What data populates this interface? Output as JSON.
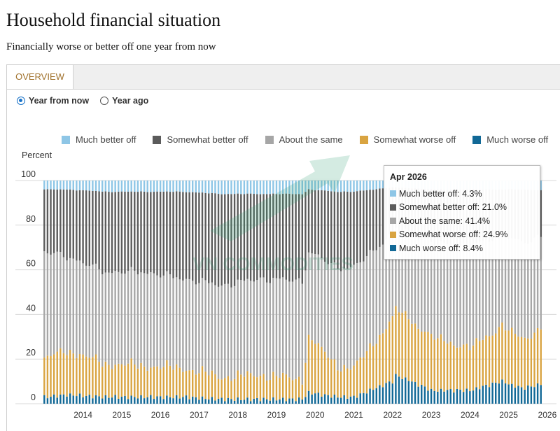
{
  "header": {
    "title": "Household financial situation",
    "subtitle": "Financially worse or better off one year from now"
  },
  "tabs": [
    {
      "label": "OVERVIEW",
      "active": true
    }
  ],
  "radio": [
    {
      "label": "Year from now",
      "checked": true
    },
    {
      "label": "Year ago",
      "checked": false
    }
  ],
  "watermark": "VN COMMODITIES",
  "tooltip": {
    "title": "Apr 2026",
    "rows": [
      {
        "label": "Much better off: 4.3%",
        "color": "#8ec6e6"
      },
      {
        "label": "Somewhat better off: 21.0%",
        "color": "#5b5b5b"
      },
      {
        "label": "About the same: 41.4%",
        "color": "#a6a6a6"
      },
      {
        "label": "Somewhat worse off: 24.9%",
        "color": "#d9a441"
      },
      {
        "label": "Much worse off: 8.4%",
        "color": "#116896"
      }
    ]
  },
  "chart_data": {
    "type": "bar",
    "stacked": true,
    "ylabel": "Percent",
    "ylim": [
      0,
      100
    ],
    "yticks": [
      0,
      20,
      40,
      60,
      80,
      100
    ],
    "xticks": [
      "2014",
      "2015",
      "2016",
      "2017",
      "2018",
      "2019",
      "2020",
      "2021",
      "2022",
      "2023",
      "2024",
      "2025",
      "2026"
    ],
    "period_start": "2013-06",
    "period_end": "2026-04",
    "grid": true,
    "legend_position": "top",
    "series": [
      {
        "name": "Much better off",
        "color": "#8ec6e6"
      },
      {
        "name": "Somewhat better off",
        "color": "#5b5b5b"
      },
      {
        "name": "About the same",
        "color": "#a6a6a6"
      },
      {
        "name": "Somewhat worse off",
        "color": "#d9a441"
      },
      {
        "name": "Much worse off",
        "color": "#116896"
      }
    ],
    "anchors": [
      {
        "date": "2013-06",
        "much_worse": 3,
        "somewhat_worse": 17,
        "about_same": 48,
        "somewhat_better": 28,
        "much_better": 4
      },
      {
        "date": "2014-01",
        "much_worse": 4,
        "somewhat_worse": 20,
        "about_same": 42,
        "somewhat_better": 30,
        "much_better": 4
      },
      {
        "date": "2015-01",
        "much_worse": 3,
        "somewhat_worse": 15,
        "about_same": 41,
        "somewhat_better": 36,
        "much_better": 5
      },
      {
        "date": "2016-01",
        "much_worse": 3,
        "somewhat_worse": 14,
        "about_same": 42,
        "somewhat_better": 36,
        "much_better": 5
      },
      {
        "date": "2017-01",
        "much_worse": 3,
        "somewhat_worse": 13,
        "about_same": 40,
        "somewhat_better": 39,
        "much_better": 5
      },
      {
        "date": "2018-01",
        "much_worse": 2,
        "somewhat_worse": 10,
        "about_same": 41,
        "somewhat_better": 41,
        "much_better": 6
      },
      {
        "date": "2019-01",
        "much_worse": 2,
        "somewhat_worse": 11,
        "about_same": 43,
        "somewhat_better": 38,
        "much_better": 6
      },
      {
        "date": "2020-02",
        "much_worse": 2,
        "somewhat_worse": 9,
        "about_same": 44,
        "somewhat_better": 39,
        "much_better": 6
      },
      {
        "date": "2020-04",
        "much_worse": 5,
        "somewhat_worse": 25,
        "about_same": 38,
        "somewhat_better": 28,
        "much_better": 4
      },
      {
        "date": "2021-01",
        "much_worse": 3,
        "somewhat_worse": 14,
        "about_same": 44,
        "somewhat_better": 34,
        "much_better": 5
      },
      {
        "date": "2021-06",
        "much_worse": 3,
        "somewhat_worse": 13,
        "about_same": 45,
        "somewhat_better": 34,
        "much_better": 5
      },
      {
        "date": "2022-06",
        "much_worse": 10,
        "somewhat_worse": 28,
        "about_same": 38,
        "somewhat_better": 21,
        "much_better": 3
      },
      {
        "date": "2022-07",
        "much_worse": 13,
        "somewhat_worse": 30,
        "about_same": 36,
        "somewhat_better": 18,
        "much_better": 3
      },
      {
        "date": "2023-06",
        "much_worse": 6,
        "somewhat_worse": 24,
        "about_same": 42,
        "somewhat_better": 24,
        "much_better": 4
      },
      {
        "date": "2024-06",
        "much_worse": 6,
        "somewhat_worse": 19,
        "about_same": 45,
        "somewhat_better": 26,
        "much_better": 4
      },
      {
        "date": "2025-04",
        "much_worse": 10,
        "somewhat_worse": 25,
        "about_same": 41,
        "somewhat_better": 20,
        "much_better": 4
      },
      {
        "date": "2025-10",
        "much_worse": 7,
        "somewhat_worse": 22,
        "about_same": 43,
        "somewhat_better": 24,
        "much_better": 4
      },
      {
        "date": "2026-04",
        "much_worse": 8.4,
        "somewhat_worse": 24.9,
        "about_same": 41.4,
        "somewhat_better": 21.0,
        "much_better": 4.3
      }
    ]
  }
}
